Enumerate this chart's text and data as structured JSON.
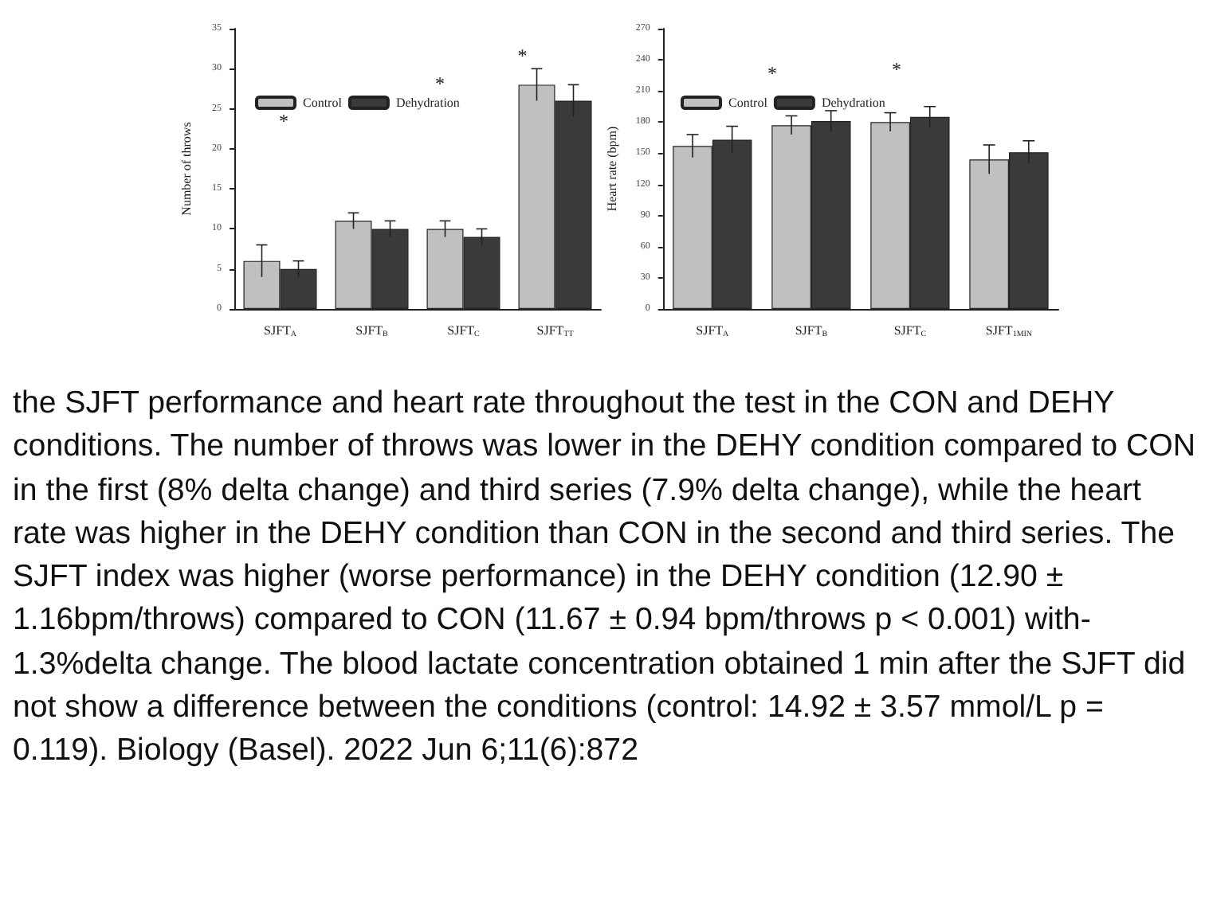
{
  "chart_data": [
    {
      "type": "bar",
      "ylabel": "Number of throws",
      "categories": [
        "SJFT$_{A}$",
        "SJFT$_{B}$",
        "SJFT$_{C}$",
        "SJFT$_{TT}$"
      ],
      "series": [
        {
          "name": "Control",
          "color": "#c0c0c0",
          "values": [
            6,
            11,
            10,
            28
          ],
          "errors": [
            2,
            1,
            1,
            2
          ]
        },
        {
          "name": "Dehydration",
          "color": "#3a3a3a",
          "values": [
            5,
            10,
            9,
            26
          ],
          "errors": [
            1,
            1,
            1,
            2
          ]
        }
      ],
      "ylim": [
        0,
        35
      ],
      "yticks": [
        0,
        5,
        10,
        15,
        20,
        25,
        30,
        35
      ],
      "grid": false,
      "legend": "top left",
      "annotations": [
        "*",
        "*",
        "*",
        "the SJFT performance and heart rate throughout the test in the CON and DEHY conditions. The number of throws was lower in the DEHY condition compared to CON in the first (8% delta change) and third series (7.9% delta change), while the heart rate was higher in the DEHY condition than CON in the second and third series. The SJFT index was higher (worse performance) in the DEHY condition (12.90 ± 1.16bpm/throws) compared to CON (11.67 ± 0.94 bpm/throws p < 0.001) with-1.3%delta change. The blood lactate concentration obtained 1 min after the SJFT did not show a difference between the conditions (control: 14.92 ± 3.57 mmol/L p = 0.119). Biology (Basel). 2022 Jun 6;11(6):872"
      ]
    },
    {
      "type": "bar",
      "ylabel": "Heart rate (bpm)",
      "categories": [
        "SJFT$_{A}$",
        "SJFT$_{B}$",
        "SJFT$_{C}$",
        "SJFT$_{1MIN}$"
      ],
      "series": [
        {
          "name": "Control",
          "color": "#c0c0c0",
          "values": [
            157,
            177,
            180,
            144
          ],
          "errors": [
            11,
            9,
            9,
            14
          ]
        },
        {
          "name": "Dehydration",
          "color": "#3a3a3a",
          "values": [
            163,
            181,
            185,
            151
          ],
          "errors": [
            13,
            10,
            10,
            11
          ]
        }
      ],
      "ylim": [
        0,
        270
      ],
      "yticks": [
        0,
        30,
        60,
        90,
        120,
        150,
        180,
        210,
        240,
        270
      ],
      "grid": false,
      "legend": "top left",
      "annotations": [
        "*",
        "*"
      ]
    }
  ]
}
